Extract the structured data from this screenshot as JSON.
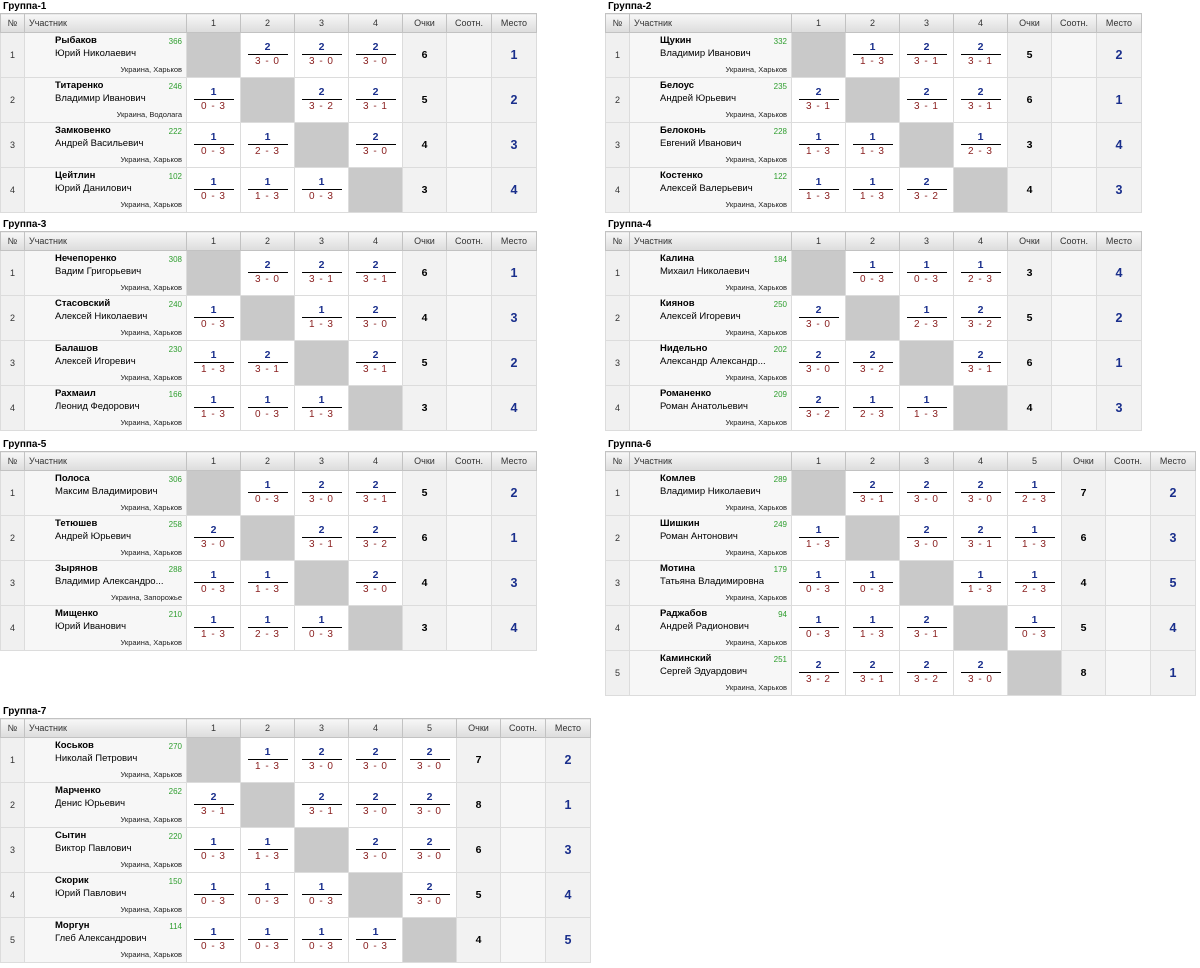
{
  "headers": {
    "num": "№",
    "player": "Участник",
    "points": "Очки",
    "ratio": "Соотн.",
    "place": "Место"
  },
  "groups": [
    {
      "title": "Группа-1",
      "cols": [
        "1",
        "2",
        "3",
        "4"
      ],
      "rows": [
        {
          "n": "1",
          "last": "Рыбаков",
          "first": "Юрий Николаевич",
          "rating": "366",
          "city": "Украина, Харьков",
          "points": "6",
          "place": "1",
          "res": [
            null,
            {
              "t": "2",
              "b": "3 - 0"
            },
            {
              "t": "2",
              "b": "3 - 0"
            },
            {
              "t": "2",
              "b": "3 - 0"
            }
          ]
        },
        {
          "n": "2",
          "last": "Титаренко",
          "first": "Владимир Иванович",
          "rating": "246",
          "city": "Украина, Водолага",
          "points": "5",
          "place": "2",
          "res": [
            {
              "t": "1",
              "b": "0 - 3"
            },
            null,
            {
              "t": "2",
              "b": "3 - 2"
            },
            {
              "t": "2",
              "b": "3 - 1"
            }
          ]
        },
        {
          "n": "3",
          "last": "Замковенко",
          "first": "Андрей Васильевич",
          "rating": "222",
          "city": "Украина, Харьков",
          "points": "4",
          "place": "3",
          "res": [
            {
              "t": "1",
              "b": "0 - 3"
            },
            {
              "t": "1",
              "b": "2 - 3"
            },
            null,
            {
              "t": "2",
              "b": "3 - 0"
            }
          ]
        },
        {
          "n": "4",
          "last": "Цейтлин",
          "first": "Юрий Данилович",
          "rating": "102",
          "city": "Украина, Харьков",
          "points": "3",
          "place": "4",
          "res": [
            {
              "t": "1",
              "b": "0 - 3"
            },
            {
              "t": "1",
              "b": "1 - 3"
            },
            {
              "t": "1",
              "b": "0 - 3"
            },
            null
          ]
        }
      ]
    },
    {
      "title": "Группа-2",
      "cols": [
        "1",
        "2",
        "3",
        "4"
      ],
      "rows": [
        {
          "n": "1",
          "last": "Щукин",
          "first": "Владимир Иванович",
          "rating": "332",
          "city": "Украина, Харьков",
          "points": "5",
          "place": "2",
          "res": [
            null,
            {
              "t": "1",
              "b": "1 - 3"
            },
            {
              "t": "2",
              "b": "3 - 1"
            },
            {
              "t": "2",
              "b": "3 - 1"
            }
          ]
        },
        {
          "n": "2",
          "last": "Белоус",
          "first": "Андрей Юрьевич",
          "rating": "235",
          "city": "Украина, Харьков",
          "points": "6",
          "place": "1",
          "res": [
            {
              "t": "2",
              "b": "3 - 1"
            },
            null,
            {
              "t": "2",
              "b": "3 - 1"
            },
            {
              "t": "2",
              "b": "3 - 1"
            }
          ]
        },
        {
          "n": "3",
          "last": "Белоконь",
          "first": "Евгений Иванович",
          "rating": "228",
          "city": "Украина, Харьков",
          "points": "3",
          "place": "4",
          "res": [
            {
              "t": "1",
              "b": "1 - 3"
            },
            {
              "t": "1",
              "b": "1 - 3"
            },
            null,
            {
              "t": "1",
              "b": "2 - 3"
            }
          ]
        },
        {
          "n": "4",
          "last": "Костенко",
          "first": "Алексей Валерьевич",
          "rating": "122",
          "city": "Украина, Харьков",
          "points": "4",
          "place": "3",
          "res": [
            {
              "t": "1",
              "b": "1 - 3"
            },
            {
              "t": "1",
              "b": "1 - 3"
            },
            {
              "t": "2",
              "b": "3 - 2"
            },
            null
          ]
        }
      ]
    },
    {
      "title": "Группа-3",
      "cols": [
        "1",
        "2",
        "3",
        "4"
      ],
      "rows": [
        {
          "n": "1",
          "last": "Нечепоренко",
          "first": "Вадим Григорьевич",
          "rating": "308",
          "city": "Украина, Харьков",
          "points": "6",
          "place": "1",
          "res": [
            null,
            {
              "t": "2",
              "b": "3 - 0"
            },
            {
              "t": "2",
              "b": "3 - 1"
            },
            {
              "t": "2",
              "b": "3 - 1"
            }
          ]
        },
        {
          "n": "2",
          "last": "Стасовский",
          "first": "Алексей Николаевич",
          "rating": "240",
          "city": "Украина, Харьков",
          "points": "4",
          "place": "3",
          "res": [
            {
              "t": "1",
              "b": "0 - 3"
            },
            null,
            {
              "t": "1",
              "b": "1 - 3"
            },
            {
              "t": "2",
              "b": "3 - 0"
            }
          ]
        },
        {
          "n": "3",
          "last": "Балашов",
          "first": "Алексей Игоревич",
          "rating": "230",
          "city": "Украина, Харьков",
          "points": "5",
          "place": "2",
          "res": [
            {
              "t": "1",
              "b": "1 - 3"
            },
            {
              "t": "2",
              "b": "3 - 1"
            },
            null,
            {
              "t": "2",
              "b": "3 - 1"
            }
          ]
        },
        {
          "n": "4",
          "last": "Рахмаил",
          "first": "Леонид Федорович",
          "rating": "166",
          "city": "Украина, Харьков",
          "points": "3",
          "place": "4",
          "res": [
            {
              "t": "1",
              "b": "1 - 3"
            },
            {
              "t": "1",
              "b": "0 - 3"
            },
            {
              "t": "1",
              "b": "1 - 3"
            },
            null
          ]
        }
      ]
    },
    {
      "title": "Группа-4",
      "cols": [
        "1",
        "2",
        "3",
        "4"
      ],
      "rows": [
        {
          "n": "1",
          "last": "Калина",
          "first": "Михаил Николаевич",
          "rating": "184",
          "city": "Украина, Харьков",
          "points": "3",
          "place": "4",
          "res": [
            null,
            {
              "t": "1",
              "b": "0 - 3"
            },
            {
              "t": "1",
              "b": "0 - 3"
            },
            {
              "t": "1",
              "b": "2 - 3"
            }
          ]
        },
        {
          "n": "2",
          "last": "Киянов",
          "first": "Алексей Игоревич",
          "rating": "250",
          "city": "Украина, Харьков",
          "points": "5",
          "place": "2",
          "res": [
            {
              "t": "2",
              "b": "3 - 0"
            },
            null,
            {
              "t": "1",
              "b": "2 - 3"
            },
            {
              "t": "2",
              "b": "3 - 2"
            }
          ]
        },
        {
          "n": "3",
          "last": "Нидельно",
          "first": "Александр Александр...",
          "rating": "202",
          "city": "Украина, Харьков",
          "points": "6",
          "place": "1",
          "res": [
            {
              "t": "2",
              "b": "3 - 0"
            },
            {
              "t": "2",
              "b": "3 - 2"
            },
            null,
            {
              "t": "2",
              "b": "3 - 1"
            }
          ]
        },
        {
          "n": "4",
          "last": "Романенко",
          "first": "Роман Анатольевич",
          "rating": "209",
          "city": "Украина, Харьков",
          "points": "4",
          "place": "3",
          "res": [
            {
              "t": "2",
              "b": "3 - 2"
            },
            {
              "t": "1",
              "b": "2 - 3"
            },
            {
              "t": "1",
              "b": "1 - 3"
            },
            null
          ]
        }
      ]
    },
    {
      "title": "Группа-5",
      "cols": [
        "1",
        "2",
        "3",
        "4"
      ],
      "rows": [
        {
          "n": "1",
          "last": "Полоса",
          "first": "Максим Владимирович",
          "rating": "306",
          "city": "Украина, Харьков",
          "points": "5",
          "place": "2",
          "res": [
            null,
            {
              "t": "1",
              "b": "0 - 3"
            },
            {
              "t": "2",
              "b": "3 - 0"
            },
            {
              "t": "2",
              "b": "3 - 1"
            }
          ]
        },
        {
          "n": "2",
          "last": "Тетюшев",
          "first": "Андрей Юрьевич",
          "rating": "258",
          "city": "Украина, Харьков",
          "points": "6",
          "place": "1",
          "res": [
            {
              "t": "2",
              "b": "3 - 0"
            },
            null,
            {
              "t": "2",
              "b": "3 - 1"
            },
            {
              "t": "2",
              "b": "3 - 2"
            }
          ]
        },
        {
          "n": "3",
          "last": "Зырянов",
          "first": "Владимир Александро...",
          "rating": "288",
          "city": "Украина, Запорожье",
          "points": "4",
          "place": "3",
          "res": [
            {
              "t": "1",
              "b": "0 - 3"
            },
            {
              "t": "1",
              "b": "1 - 3"
            },
            null,
            {
              "t": "2",
              "b": "3 - 0"
            }
          ]
        },
        {
          "n": "4",
          "last": "Мищенко",
          "first": "Юрий Иванович",
          "rating": "210",
          "city": "Украина, Харьков",
          "points": "3",
          "place": "4",
          "res": [
            {
              "t": "1",
              "b": "1 - 3"
            },
            {
              "t": "1",
              "b": "2 - 3"
            },
            {
              "t": "1",
              "b": "0 - 3"
            },
            null
          ]
        }
      ]
    },
    {
      "title": "Группа-6",
      "cols": [
        "1",
        "2",
        "3",
        "4",
        "5"
      ],
      "rows": [
        {
          "n": "1",
          "last": "Комлев",
          "first": "Владимир Николаевич",
          "rating": "289",
          "city": "Украина, Харьков",
          "points": "7",
          "place": "2",
          "res": [
            null,
            {
              "t": "2",
              "b": "3 - 1"
            },
            {
              "t": "2",
              "b": "3 - 0"
            },
            {
              "t": "2",
              "b": "3 - 0"
            },
            {
              "t": "1",
              "b": "2 - 3"
            }
          ]
        },
        {
          "n": "2",
          "last": "Шишкин",
          "first": "Роман Антонович",
          "rating": "249",
          "city": "Украина, Харьков",
          "points": "6",
          "place": "3",
          "res": [
            {
              "t": "1",
              "b": "1 - 3"
            },
            null,
            {
              "t": "2",
              "b": "3 - 0"
            },
            {
              "t": "2",
              "b": "3 - 1"
            },
            {
              "t": "1",
              "b": "1 - 3"
            }
          ]
        },
        {
          "n": "3",
          "last": "Мотина",
          "first": "Татьяна Владимировна",
          "rating": "179",
          "city": "Украина, Харьков",
          "points": "4",
          "place": "5",
          "res": [
            {
              "t": "1",
              "b": "0 - 3"
            },
            {
              "t": "1",
              "b": "0 - 3"
            },
            null,
            {
              "t": "1",
              "b": "1 - 3"
            },
            {
              "t": "1",
              "b": "2 - 3"
            }
          ]
        },
        {
          "n": "4",
          "last": "Раджабов",
          "first": "Андрей Радионович",
          "rating": "94",
          "city": "Украина, Харьков",
          "points": "5",
          "place": "4",
          "res": [
            {
              "t": "1",
              "b": "0 - 3"
            },
            {
              "t": "1",
              "b": "1 - 3"
            },
            {
              "t": "2",
              "b": "3 - 1"
            },
            null,
            {
              "t": "1",
              "b": "0 - 3"
            }
          ]
        },
        {
          "n": "5",
          "last": "Каминский",
          "first": "Сергей Эдуардович",
          "rating": "251",
          "city": "Украина, Харьков",
          "points": "8",
          "place": "1",
          "res": [
            {
              "t": "2",
              "b": "3 - 2"
            },
            {
              "t": "2",
              "b": "3 - 1"
            },
            {
              "t": "2",
              "b": "3 - 2"
            },
            {
              "t": "2",
              "b": "3 - 0"
            },
            null
          ]
        }
      ]
    },
    {
      "title": "Группа-7",
      "cols": [
        "1",
        "2",
        "3",
        "4",
        "5"
      ],
      "rows": [
        {
          "n": "1",
          "last": "Коськов",
          "first": "Николай Петрович",
          "rating": "270",
          "city": "Украина, Харьков",
          "points": "7",
          "place": "2",
          "res": [
            null,
            {
              "t": "1",
              "b": "1 - 3"
            },
            {
              "t": "2",
              "b": "3 - 0"
            },
            {
              "t": "2",
              "b": "3 - 0"
            },
            {
              "t": "2",
              "b": "3 - 0"
            }
          ]
        },
        {
          "n": "2",
          "last": "Марченко",
          "first": "Денис Юрьевич",
          "rating": "262",
          "city": "Украина, Харьков",
          "points": "8",
          "place": "1",
          "res": [
            {
              "t": "2",
              "b": "3 - 1"
            },
            null,
            {
              "t": "2",
              "b": "3 - 1"
            },
            {
              "t": "2",
              "b": "3 - 0"
            },
            {
              "t": "2",
              "b": "3 - 0"
            }
          ]
        },
        {
          "n": "3",
          "last": "Сытин",
          "first": "Виктор Павлович",
          "rating": "220",
          "city": "Украина, Харьков",
          "points": "6",
          "place": "3",
          "res": [
            {
              "t": "1",
              "b": "0 - 3"
            },
            {
              "t": "1",
              "b": "1 - 3"
            },
            null,
            {
              "t": "2",
              "b": "3 - 0"
            },
            {
              "t": "2",
              "b": "3 - 0"
            }
          ]
        },
        {
          "n": "4",
          "last": "Скорик",
          "first": "Юрий Павлович",
          "rating": "150",
          "city": "Украина, Харьков",
          "points": "5",
          "place": "4",
          "res": [
            {
              "t": "1",
              "b": "0 - 3"
            },
            {
              "t": "1",
              "b": "0 - 3"
            },
            {
              "t": "1",
              "b": "0 - 3"
            },
            null,
            {
              "t": "2",
              "b": "3 - 0"
            }
          ]
        },
        {
          "n": "5",
          "last": "Моргун",
          "first": "Глеб Александрович",
          "rating": "114",
          "city": "Украина, Харьков",
          "points": "4",
          "place": "5",
          "res": [
            {
              "t": "1",
              "b": "0 - 3"
            },
            {
              "t": "1",
              "b": "0 - 3"
            },
            {
              "t": "1",
              "b": "0 - 3"
            },
            {
              "t": "1",
              "b": "0 - 3"
            },
            null
          ]
        }
      ]
    }
  ]
}
